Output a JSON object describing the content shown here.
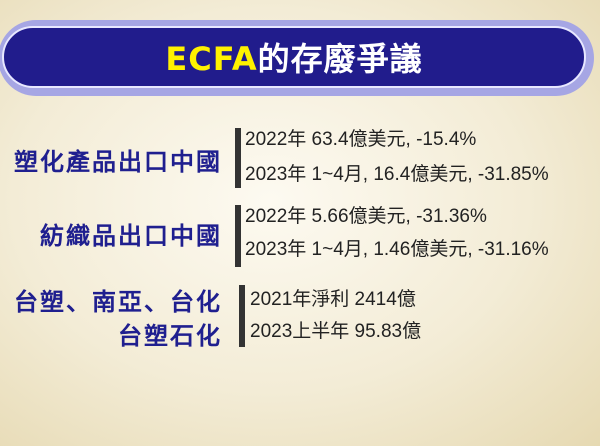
{
  "title": {
    "highlight": "ECFA",
    "rest": "的存廢爭議"
  },
  "sections": [
    {
      "label": [
        "塑化產品出口中國"
      ],
      "lines": [
        "2022年 63.4億美元,  -15.4%",
        "2023年 1~4月, 16.4億美元, -31.85%"
      ]
    },
    {
      "label": [
        "紡織品出口中國"
      ],
      "lines": [
        "2022年 5.66億美元, -31.36%",
        "2023年 1~4月, 1.46億美元, -31.16%"
      ]
    },
    {
      "label": [
        "台塑、南亞、台化",
        "台塑石化"
      ],
      "lines": [
        "2021年淨利 2414億",
        "2023上半年 95.83億"
      ]
    }
  ],
  "colors": {
    "title_bg": "#211c8c",
    "title_highlight": "#fff200",
    "label": "#1f1f8f"
  }
}
